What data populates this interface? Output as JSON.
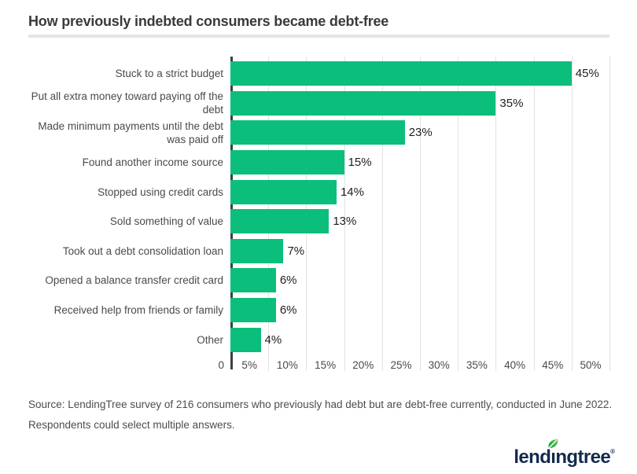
{
  "title": "How previously indebted consumers became debt-free",
  "chart_data": {
    "type": "bar",
    "orientation": "horizontal",
    "title": "How previously indebted consumers became debt-free",
    "categories": [
      "Stuck to a strict budget",
      "Put all extra money toward paying off the debt",
      "Made minimum payments until the debt was paid off",
      "Found another income source",
      "Stopped using credit cards",
      "Sold something of value",
      "Took out a debt consolidation loan",
      "Opened a balance transfer credit card",
      "Received help from friends or family",
      "Other"
    ],
    "values": [
      45,
      35,
      23,
      15,
      14,
      13,
      7,
      6,
      6,
      4
    ],
    "value_labels": [
      "45%",
      "35%",
      "23%",
      "15%",
      "14%",
      "13%",
      "7%",
      "6%",
      "6%",
      "4%"
    ],
    "xlabel": "",
    "ylabel": "",
    "xlim": [
      0,
      50
    ],
    "x_tick_labels": [
      "0",
      "5%",
      "10%",
      "15%",
      "20%",
      "25%",
      "30%",
      "35%",
      "40%",
      "45%",
      "50%"
    ],
    "grid": "vertical gridlines every 5%",
    "legend": "none"
  },
  "source": {
    "lines": [
      "Source: LendingTree survey of 216 consumers who previously had debt but are debt-free currently, conducted in June 2022.",
      "Respondents could select multiple answers."
    ]
  },
  "logo": {
    "name": "lendingtree",
    "text_before_leaf": "lend",
    "leaf_letter": "ı",
    "text_after_leaf": "ngtree",
    "registered_mark": "®"
  },
  "colors": {
    "bar": "#0cbe7b",
    "axis_line": "#3f3f3f",
    "gridline": "#e2e2e2",
    "title_text": "#3a3a3a",
    "category_text": "#4a4a4a",
    "value_text": "#1e1e1e",
    "tick_text": "#4a4a4a",
    "source_text": "#4d4d4d",
    "divider": "#e4e4e4",
    "logo_navy": "#14294d",
    "leaf_green_light": "#7ac143",
    "leaf_green_dark": "#00a84f"
  }
}
